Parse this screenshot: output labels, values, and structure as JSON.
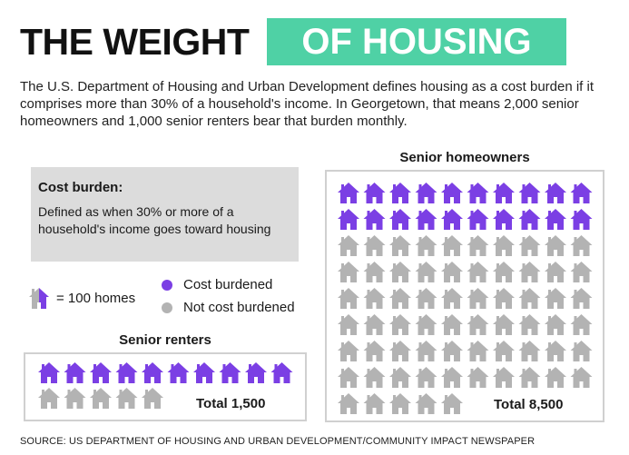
{
  "title": {
    "left": "THE WEIGHT",
    "right": "OF HOUSING"
  },
  "intro": "The U.S. Department of Housing and Urban Development defines housing as a cost burden if it comprises more than 30% of a household's income. In Georgetown, that means 2,000 senior homeowners and 1,000 senior renters bear that burden monthly.",
  "definition": {
    "title": "Cost burden:",
    "text": "Defined as when 30% or more of a household's income goes toward housing"
  },
  "legend": {
    "unit": "= 100 homes",
    "items": [
      {
        "label": "Cost burdened",
        "color": "#7b3fe4"
      },
      {
        "label": "Not cost burdened",
        "color": "#b3b3b3"
      }
    ]
  },
  "colors": {
    "burdened": "#7b3fe4",
    "not_burdened": "#b3b3b3",
    "accent": "#4fd1a5"
  },
  "chart_data": [
    {
      "type": "pictogram",
      "title": "Senior renters",
      "unit_value": 100,
      "burdened": 1000,
      "not_burdened": 500,
      "total_label": "Total 1,500"
    },
    {
      "type": "pictogram",
      "title": "Senior homeowners",
      "unit_value": 100,
      "burdened": 2000,
      "not_burdened": 6500,
      "total_label": "Total 8,500"
    }
  ],
  "source": "SOURCE: US DEPARTMENT OF HOUSING AND URBAN DEVELOPMENT/COMMUNITY IMPACT NEWSPAPER"
}
